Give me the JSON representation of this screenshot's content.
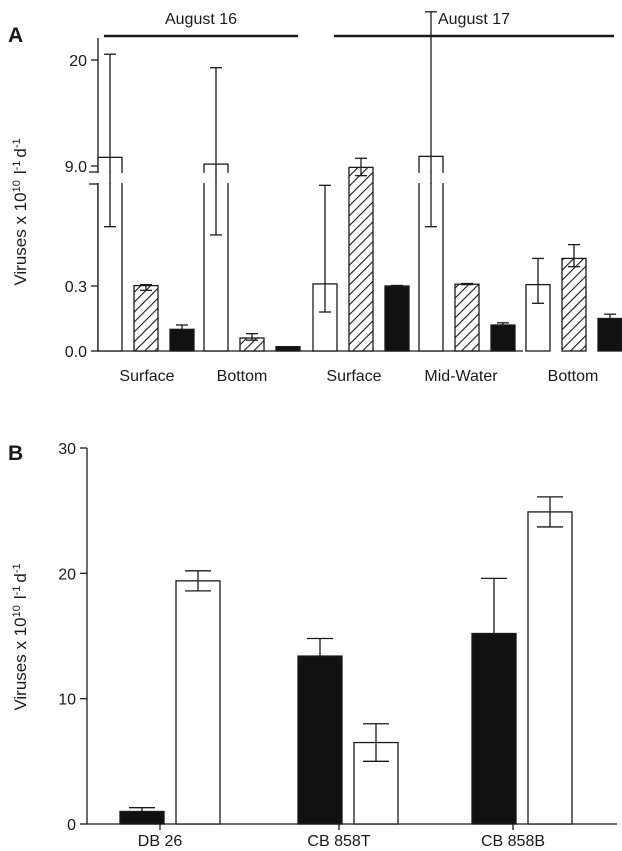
{
  "chart_data": [
    {
      "panel": "A",
      "type": "bar",
      "ylabel": "Viruses x 10",
      "ylabel_sup1": "10",
      "ylabel_unit_main": "l",
      "ylabel_sup2": "-1",
      "ylabel_d": "d",
      "ylabel_sup3": "-1",
      "yticks": [
        "0.0",
        "0.3",
        "9.0",
        "20"
      ],
      "groups": [
        {
          "date": "August 16",
          "categories": [
            "Surface",
            "Bottom"
          ]
        },
        {
          "date": "August 17",
          "categories": [
            "Surface",
            "Mid-Water",
            "Bottom"
          ]
        }
      ],
      "categories": [
        "Surface",
        "Bottom",
        "Surface",
        "Mid-Water",
        "Bottom"
      ],
      "series": [
        {
          "values": [
            9.9,
            9.2,
            0.45,
            10.0,
            0.4
          ],
          "err_low": [
            4.6,
            4.0,
            0.18,
            4.6,
            0.22
          ],
          "err_high": [
            20.6,
            19.2,
            7.6,
            25.0,
            2.3
          ],
          "fill": "#ffffff"
        },
        {
          "values": [
            0.33,
            0.06,
            8.9,
            0.43,
            2.3
          ],
          "err_low": [
            0.28,
            0.05,
            8.3,
            0.4,
            1.7
          ],
          "err_high": [
            0.4,
            0.08,
            9.8,
            0.48,
            3.3
          ],
          "fill": "hatch"
        },
        {
          "values": [
            0.1,
            0.02,
            0.3,
            0.12,
            0.15
          ],
          "err_low": [
            0.1,
            0.02,
            0.3,
            0.12,
            0.15
          ],
          "err_high": [
            0.12,
            0.02,
            0.34,
            0.13,
            0.17
          ],
          "fill": "#111111"
        }
      ]
    },
    {
      "panel": "B",
      "type": "bar",
      "ylabel": "Viruses x 10",
      "ylabel_sup1": "10",
      "ylabel_unit_main": "l",
      "ylabel_sup2": "-1",
      "ylabel_d": "d",
      "ylabel_sup3": "-1",
      "ylim": [
        0,
        30
      ],
      "yticks": [
        0,
        10,
        20,
        30
      ],
      "categories": [
        "DB 26",
        "CB 858T",
        "CB 858B"
      ],
      "series": [
        {
          "values": [
            1.0,
            13.4,
            15.2
          ],
          "err_high": [
            1.3,
            14.8,
            19.6
          ],
          "fill": "#111111"
        },
        {
          "values": [
            19.4,
            6.5,
            24.9
          ],
          "err_low": [
            18.6,
            5.0,
            23.7
          ],
          "err_high": [
            20.2,
            8.0,
            26.1
          ],
          "fill": "#ffffff"
        }
      ]
    }
  ]
}
